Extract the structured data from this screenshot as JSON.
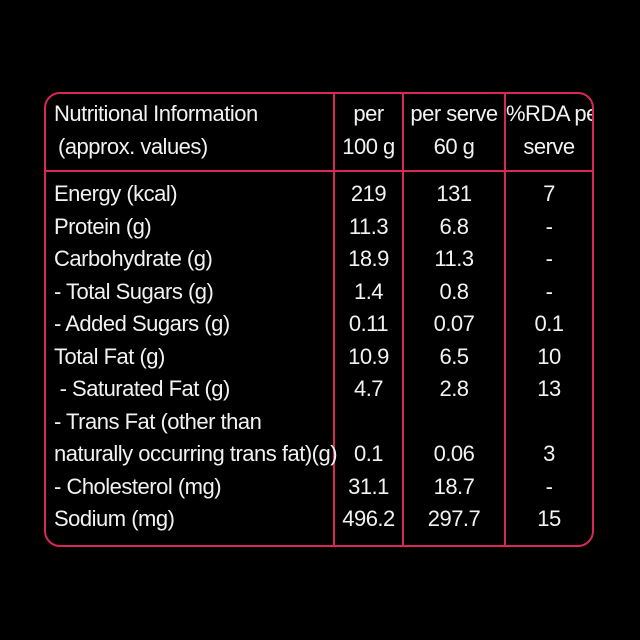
{
  "header": {
    "col1_line1": "Nutritional Information",
    "col1_line2": "(approx. values)",
    "col2_line1": "per",
    "col2_line2": "100 g",
    "col3_line1": "per serve",
    "col3_line2": "60 g",
    "col4_line1": "%RDA per",
    "col4_line2": "serve"
  },
  "rows": [
    {
      "label": "Energy (kcal)",
      "per100": "219",
      "perServe": "131",
      "rda": "7"
    },
    {
      "label": "Protein (g)",
      "per100": "11.3",
      "perServe": "6.8",
      "rda": "-"
    },
    {
      "label": "Carbohydrate (g)",
      "per100": "18.9",
      "perServe": "11.3",
      "rda": "-"
    },
    {
      "label": "- Total Sugars (g)",
      "per100": "1.4",
      "perServe": "0.8",
      "rda": "-"
    },
    {
      "label": "- Added Sugars (g)",
      "per100": "0.11",
      "perServe": "0.07",
      "rda": "0.1"
    },
    {
      "label": "Total Fat (g)",
      "per100": "10.9",
      "perServe": "6.5",
      "rda": "10"
    },
    {
      "label": " - Saturated Fat (g)",
      "per100": "4.7",
      "perServe": "2.8",
      "rda": "13"
    },
    {
      "label_line1": "- Trans Fat (other than",
      "label": "naturally occurring trans fat)(g)",
      "per100": "0.1",
      "perServe": "0.06",
      "rda": "3"
    },
    {
      "label": "- Cholesterol (mg)",
      "per100": "31.1",
      "perServe": "18.7",
      "rda": "-"
    },
    {
      "label": "Sodium (mg)",
      "per100": "496.2",
      "perServe": "297.7",
      "rda": "15"
    }
  ],
  "colors": {
    "border": "#d8285b",
    "background": "#000000",
    "text": "#f2f2f2"
  }
}
